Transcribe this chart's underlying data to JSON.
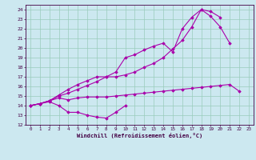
{
  "xlabel": "Windchill (Refroidissement éolien,°C)",
  "x": [
    0,
    1,
    2,
    3,
    4,
    5,
    6,
    7,
    8,
    9,
    10,
    11,
    12,
    13,
    14,
    15,
    16,
    17,
    18,
    19,
    20,
    21,
    22,
    23
  ],
  "line1": [
    14.0,
    14.2,
    14.4,
    14.0,
    13.3,
    13.3,
    13.0,
    12.8,
    12.7,
    13.3,
    14.0,
    null,
    null,
    null,
    null,
    null,
    null,
    null,
    null,
    null,
    null,
    null,
    null,
    null
  ],
  "line2": [
    14.0,
    14.2,
    14.5,
    14.8,
    14.6,
    14.8,
    14.9,
    14.9,
    14.9,
    15.0,
    15.1,
    15.2,
    15.3,
    15.4,
    15.5,
    15.6,
    15.7,
    15.8,
    15.9,
    16.0,
    16.1,
    16.2,
    15.5,
    null
  ],
  "line3": [
    14.0,
    14.2,
    14.5,
    15.0,
    15.3,
    15.7,
    16.1,
    16.5,
    17.0,
    17.5,
    19.0,
    19.3,
    19.8,
    20.2,
    20.5,
    19.6,
    22.0,
    23.2,
    24.0,
    23.3,
    22.2,
    20.5,
    null,
    null
  ],
  "line4": [
    14.0,
    14.2,
    14.5,
    15.1,
    15.7,
    16.2,
    16.6,
    17.0,
    17.0,
    17.0,
    17.2,
    17.5,
    18.0,
    18.4,
    19.0,
    19.9,
    20.8,
    22.2,
    24.0,
    23.8,
    23.2,
    null,
    null,
    null
  ],
  "bg_color": "#cce8f0",
  "line_color": "#aa00aa",
  "grid_color": "#99ccbb",
  "ylim": [
    12,
    24.5
  ],
  "xlim": [
    -0.5,
    23.5
  ],
  "yticks": [
    12,
    13,
    14,
    15,
    16,
    17,
    18,
    19,
    20,
    21,
    22,
    23,
    24
  ],
  "xticks": [
    0,
    1,
    2,
    3,
    4,
    5,
    6,
    7,
    8,
    9,
    10,
    11,
    12,
    13,
    14,
    15,
    16,
    17,
    18,
    19,
    20,
    21,
    22,
    23
  ]
}
